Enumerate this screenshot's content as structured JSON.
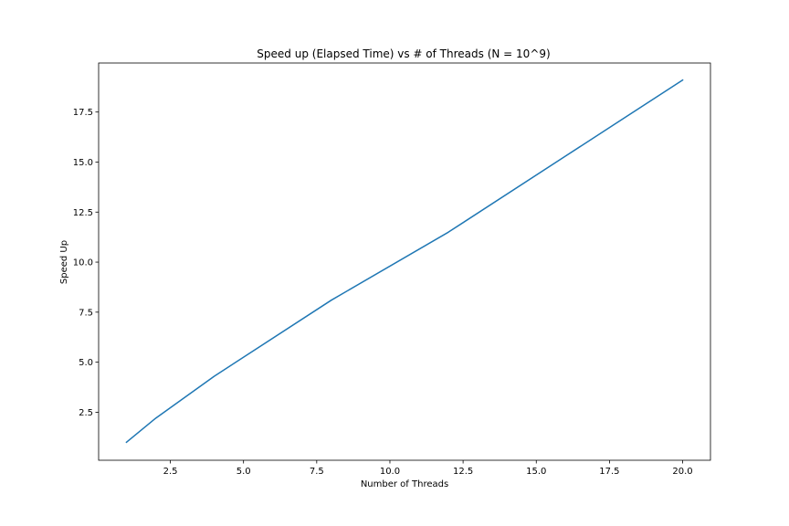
{
  "chart_data": {
    "type": "line",
    "title": "Speed up (Elapsed Time) vs # of Threads (N = 10^9)",
    "xlabel": "Number of Threads",
    "ylabel": "Speed Up",
    "xlim": [
      0.05,
      20.95
    ],
    "ylim": [
      0.1,
      19.95
    ],
    "xticks": [
      2.5,
      5.0,
      7.5,
      10.0,
      12.5,
      15.0,
      17.5,
      20.0
    ],
    "xtick_labels": [
      "2.5",
      "5.0",
      "7.5",
      "10.0",
      "12.5",
      "15.0",
      "17.5",
      "20.0"
    ],
    "yticks": [
      2.5,
      5.0,
      7.5,
      10.0,
      12.5,
      15.0,
      17.5
    ],
    "ytick_labels": [
      "2.5",
      "5.0",
      "7.5",
      "10.0",
      "12.5",
      "15.0",
      "17.5"
    ],
    "grid": false,
    "legend": "none",
    "series": [
      {
        "color": "#1f77b4",
        "x": [
          1,
          2,
          4,
          8,
          12,
          16,
          20
        ],
        "y": [
          1.0,
          2.2,
          4.3,
          8.1,
          11.5,
          15.3,
          19.1
        ]
      }
    ]
  }
}
